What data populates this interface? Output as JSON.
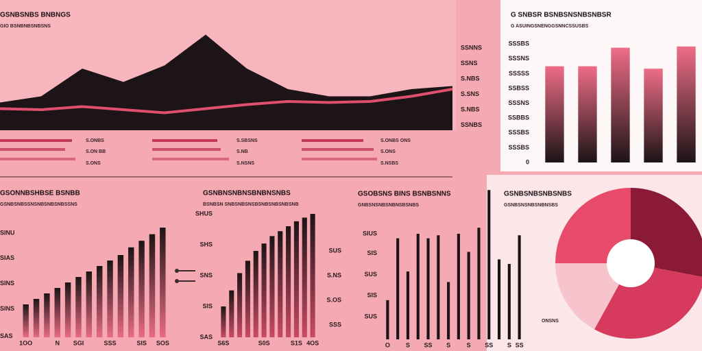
{
  "chart_data": [
    {
      "type": "area",
      "title": "GSNBSNBS BNBNGS",
      "subtitle": "GIO BSNBNBSNBSNS",
      "series": [
        {
          "color": "#1c1416",
          "values": [
            27,
            33,
            60,
            47,
            63,
            93,
            60,
            40,
            33,
            33,
            40,
            43
          ]
        },
        {
          "color": "#e0506e",
          "values": [
            21,
            20,
            23,
            20,
            17,
            21,
            25,
            28,
            27,
            28,
            33,
            40
          ]
        }
      ],
      "ylim": [
        0,
        100
      ],
      "yticks": [
        {
          "value": 5,
          "label": "SSNBS"
        },
        {
          "value": 20,
          "label": "S.NBS"
        },
        {
          "value": 35,
          "label": "S.SNS"
        },
        {
          "value": 50,
          "label": "S.NBS"
        },
        {
          "value": 65,
          "label": "SSNS"
        },
        {
          "value": 80,
          "label": "SSNNS"
        }
      ]
    },
    {
      "type": "hbar",
      "color": "#c23a58",
      "categories": [
        "S.ONBS",
        "S.ON BB",
        "S.ONS",
        "S.SBSNS",
        "S.NB",
        "S.NSNS",
        "S.ONBS ONS",
        "S.ONS",
        "S.NSBS"
      ],
      "values": [
        105,
        95,
        110,
        95,
        100,
        112,
        90,
        105,
        110
      ],
      "xlim": [
        0,
        120
      ]
    },
    {
      "type": "bar",
      "title": "G SNBSR BSNBSNSNBSNBSR",
      "subtitle": "G ASUINGSNENGGSNNCSSUSBS",
      "colors": [
        "#ee6d87",
        "#1c1416"
      ],
      "values": [
        78,
        78,
        93,
        76,
        94
      ],
      "ylim": [
        0,
        100
      ],
      "yticks": [
        0,
        {
          "value": 12,
          "label": "SSSBS"
        },
        {
          "value": 24,
          "label": "SSSBS"
        },
        {
          "value": 36,
          "label": "SSBBS"
        },
        {
          "value": 48,
          "label": "SSSNS"
        },
        {
          "value": 60,
          "label": "SSBSS"
        },
        {
          "value": 72,
          "label": "SSSSS"
        },
        {
          "value": 84,
          "label": "SSSNS"
        },
        {
          "value": 96,
          "label": "SSSBS"
        }
      ]
    },
    {
      "type": "bar",
      "title": "GSONNBSHBSE BSNBB",
      "subtitle": "GSNBSNBSSNSNBSNBSNBSSNS",
      "colors": [
        "#1c1416",
        "#e86a84"
      ],
      "values": [
        30,
        35,
        40,
        45,
        50,
        55,
        60,
        65,
        70,
        75,
        82,
        88,
        94,
        100
      ],
      "ylim": [
        0,
        100
      ],
      "categories": [
        "1OO",
        null,
        null,
        "N",
        null,
        "SGI",
        null,
        null,
        "SSS",
        null,
        null,
        "SIS",
        null,
        "SOS"
      ],
      "yticks": [
        {
          "value": 1,
          "label": "SAS"
        },
        {
          "value": 26,
          "label": "SINS"
        },
        {
          "value": 49,
          "label": "SINS"
        },
        {
          "value": 72,
          "label": "SIAS"
        },
        {
          "value": 95,
          "label": "SINU"
        }
      ]
    },
    {
      "type": "bar",
      "title": "GSNBNSNBNSBNBNSNBS",
      "subtitle": "BSNBSN SNBSNBSNSBSNBSNBSNBSNB",
      "colors": [
        "#1c1416",
        "#c84a66"
      ],
      "values": [
        25,
        38,
        52,
        62,
        70,
        76,
        82,
        86,
        90,
        94,
        97,
        100
      ],
      "ylim": [
        0,
        100
      ],
      "categories": [
        "S6S",
        null,
        null,
        null,
        null,
        "S0S",
        null,
        null,
        null,
        "S1S",
        null,
        "4OS"
      ],
      "yticks": [
        {
          "value": 0,
          "label": "SAS"
        },
        {
          "value": 25,
          "label": "SIS"
        },
        {
          "value": 50,
          "label": "SNS"
        },
        {
          "value": 75,
          "label": "SHS"
        },
        {
          "value": 100,
          "label": "SHUS"
        }
      ],
      "y2lim": [
        0,
        100
      ],
      "y2ticks": [
        {
          "value": 10,
          "label": "SSS"
        },
        {
          "value": 30,
          "label": "S.OS"
        },
        {
          "value": 50,
          "label": "S.NS"
        },
        {
          "value": 70,
          "label": "SUS"
        }
      ]
    },
    {
      "type": "bar",
      "title": "GSOBSNS BINS BSNBSNNS",
      "subtitle": "GNBSNSNBSNBNSBSNBS",
      "colors": [
        "#1c1416",
        "#1c1416"
      ],
      "values": [
        26,
        67,
        45,
        70,
        67,
        69,
        38,
        70,
        58,
        74,
        99,
        53,
        50,
        69
      ],
      "ylim": [
        0,
        100
      ],
      "thin": true,
      "categories": [
        "O",
        null,
        "S",
        null,
        "SS",
        null,
        "S",
        null,
        "S",
        null,
        "SS",
        null,
        "S",
        "SS"
      ],
      "yticks": [
        {
          "value": 15,
          "label": "SUS"
        },
        {
          "value": 29,
          "label": "SIS"
        },
        {
          "value": 43,
          "label": "SUS"
        },
        {
          "value": 57,
          "label": "SIS"
        },
        {
          "value": 70,
          "label": "SIUS"
        }
      ]
    },
    {
      "type": "pie",
      "title": "GSNBSNBSNBSNBS",
      "subtitle": "GSNBSNSNBSNBNSBS",
      "annotation": "ONSNS",
      "values": [
        25,
        28,
        30,
        17
      ],
      "colors": [
        "#e84a6a",
        "#8a1a35",
        "#d63a5c",
        "#f7c3cc"
      ]
    }
  ]
}
